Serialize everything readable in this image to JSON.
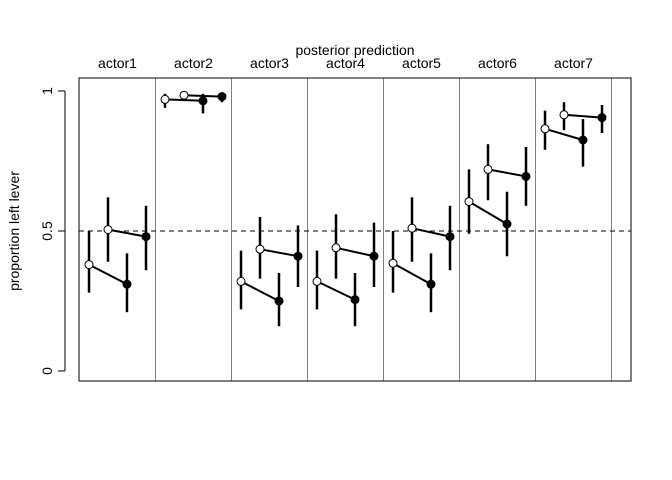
{
  "chart_data": {
    "type": "scatter",
    "title": "posterior prediction",
    "xlabel": "",
    "ylabel": "proportion left lever",
    "ylim": [
      0,
      1
    ],
    "y_ticks": [
      0,
      0.5,
      1
    ],
    "y_tick_labels": [
      "0",
      "0.5",
      "1"
    ],
    "reference_line": 0.5,
    "reference_line_style": "dashed",
    "point_styles": {
      "open": "#ffffff",
      "filled": "#000000"
    },
    "actors": [
      {
        "label": "actor1",
        "points": [
          {
            "mean": 0.38,
            "lo": 0.28,
            "hi": 0.5,
            "fill": "open"
          },
          {
            "mean": 0.505,
            "lo": 0.39,
            "hi": 0.62,
            "fill": "open"
          },
          {
            "mean": 0.31,
            "lo": 0.21,
            "hi": 0.42,
            "fill": "filled"
          },
          {
            "mean": 0.48,
            "lo": 0.36,
            "hi": 0.59,
            "fill": "filled"
          }
        ]
      },
      {
        "label": "actor2",
        "points": [
          {
            "mean": 0.97,
            "lo": 0.94,
            "hi": 0.99,
            "fill": "open"
          },
          {
            "mean": 0.985,
            "lo": 0.97,
            "hi": 0.995,
            "fill": "open"
          },
          {
            "mean": 0.965,
            "lo": 0.92,
            "hi": 0.99,
            "fill": "filled"
          },
          {
            "mean": 0.98,
            "lo": 0.96,
            "hi": 0.995,
            "fill": "filled"
          }
        ]
      },
      {
        "label": "actor3",
        "points": [
          {
            "mean": 0.32,
            "lo": 0.22,
            "hi": 0.43,
            "fill": "open"
          },
          {
            "mean": 0.435,
            "lo": 0.33,
            "hi": 0.55,
            "fill": "open"
          },
          {
            "mean": 0.25,
            "lo": 0.16,
            "hi": 0.35,
            "fill": "filled"
          },
          {
            "mean": 0.41,
            "lo": 0.3,
            "hi": 0.52,
            "fill": "filled"
          }
        ]
      },
      {
        "label": "actor4",
        "points": [
          {
            "mean": 0.32,
            "lo": 0.22,
            "hi": 0.43,
            "fill": "open"
          },
          {
            "mean": 0.44,
            "lo": 0.33,
            "hi": 0.56,
            "fill": "open"
          },
          {
            "mean": 0.255,
            "lo": 0.16,
            "hi": 0.35,
            "fill": "filled"
          },
          {
            "mean": 0.41,
            "lo": 0.3,
            "hi": 0.53,
            "fill": "filled"
          }
        ]
      },
      {
        "label": "actor5",
        "points": [
          {
            "mean": 0.385,
            "lo": 0.28,
            "hi": 0.5,
            "fill": "open"
          },
          {
            "mean": 0.51,
            "lo": 0.39,
            "hi": 0.62,
            "fill": "open"
          },
          {
            "mean": 0.31,
            "lo": 0.21,
            "hi": 0.42,
            "fill": "filled"
          },
          {
            "mean": 0.48,
            "lo": 0.36,
            "hi": 0.59,
            "fill": "filled"
          }
        ]
      },
      {
        "label": "actor6",
        "points": [
          {
            "mean": 0.605,
            "lo": 0.49,
            "hi": 0.72,
            "fill": "open"
          },
          {
            "mean": 0.72,
            "lo": 0.61,
            "hi": 0.81,
            "fill": "open"
          },
          {
            "mean": 0.525,
            "lo": 0.41,
            "hi": 0.64,
            "fill": "filled"
          },
          {
            "mean": 0.695,
            "lo": 0.59,
            "hi": 0.8,
            "fill": "filled"
          }
        ]
      },
      {
        "label": "actor7",
        "points": [
          {
            "mean": 0.865,
            "lo": 0.79,
            "hi": 0.93,
            "fill": "open"
          },
          {
            "mean": 0.915,
            "lo": 0.86,
            "hi": 0.96,
            "fill": "open"
          },
          {
            "mean": 0.825,
            "lo": 0.73,
            "hi": 0.9,
            "fill": "filled"
          },
          {
            "mean": 0.905,
            "lo": 0.85,
            "hi": 0.95,
            "fill": "filled"
          }
        ]
      }
    ]
  }
}
